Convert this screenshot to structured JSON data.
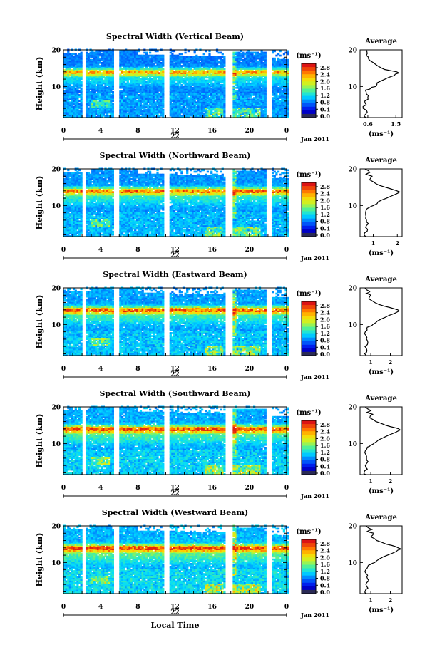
{
  "chart_data": [
    {
      "type": "heatmap",
      "title": "Spectral Width (Vertical Beam)",
      "ylabel": "Height (km)",
      "yticks": [
        "20",
        "10"
      ],
      "xticks": [
        "0",
        "4",
        "8",
        "12",
        "16",
        "20",
        "0"
      ],
      "xlim": [
        0,
        24
      ],
      "ylim": [
        1.5,
        20
      ],
      "date_center": "22",
      "date_right": "Jan 2011",
      "colorbar": {
        "unit": "(ms⁻¹)",
        "ticks": [
          "2.8",
          "2.4",
          "2.0",
          "1.6",
          "1.2",
          "0.8",
          "0.4",
          "0.0"
        ],
        "range": [
          0.0,
          3.0
        ]
      },
      "avg": {
        "title": "Average",
        "xlabel": "(ms⁻¹)",
        "xticks": [
          "0.6",
          "1.5"
        ],
        "xlim": [
          0.35,
          1.7
        ],
        "yticks": [
          "20",
          "10"
        ],
        "profile": [
          [
            1.5,
            0.55
          ],
          [
            2,
            0.48
          ],
          [
            3,
            0.58
          ],
          [
            4,
            0.45
          ],
          [
            5,
            0.55
          ],
          [
            6,
            0.5
          ],
          [
            7,
            0.6
          ],
          [
            8,
            0.55
          ],
          [
            9,
            0.52
          ],
          [
            9.5,
            0.7
          ],
          [
            10,
            0.85
          ],
          [
            11,
            0.9
          ],
          [
            12,
            1.15
          ],
          [
            13,
            1.45
          ],
          [
            13.7,
            1.6
          ],
          [
            14.3,
            1.35
          ],
          [
            15,
            1.05
          ],
          [
            16,
            0.85
          ],
          [
            17,
            0.68
          ],
          [
            18,
            0.62
          ],
          [
            19,
            0.58
          ],
          [
            20,
            0.55
          ]
        ]
      },
      "intensity": 1.0
    },
    {
      "type": "heatmap",
      "title": "Spectral Width (Northward Beam)",
      "ylabel": "Height (km)",
      "yticks": [
        "20",
        "10"
      ],
      "xticks": [
        "0",
        "4",
        "8",
        "12",
        "16",
        "20",
        "0"
      ],
      "xlim": [
        0,
        24
      ],
      "ylim": [
        1.5,
        20
      ],
      "date_center": "22",
      "date_right": "Jan 2011",
      "colorbar": {
        "unit": "(ms⁻¹)",
        "ticks": [
          "2.8",
          "2.4",
          "2.0",
          "1.6",
          "1.2",
          "0.8",
          "0.4",
          "0.0"
        ],
        "range": [
          0.0,
          3.0
        ]
      },
      "avg": {
        "title": "Average",
        "xlabel": "(ms⁻¹)",
        "xticks": [
          "1",
          "2"
        ],
        "xlim": [
          0.45,
          2.2
        ],
        "yticks": [
          "20",
          "10"
        ],
        "profile": [
          [
            1.5,
            0.7
          ],
          [
            2,
            0.62
          ],
          [
            3,
            0.75
          ],
          [
            4,
            0.68
          ],
          [
            5,
            0.8
          ],
          [
            6,
            0.72
          ],
          [
            7,
            0.7
          ],
          [
            8,
            0.68
          ],
          [
            9,
            0.72
          ],
          [
            9.5,
            0.85
          ],
          [
            10,
            1.0
          ],
          [
            11,
            1.2
          ],
          [
            12,
            1.55
          ],
          [
            13,
            1.9
          ],
          [
            13.7,
            2.1
          ],
          [
            14.3,
            1.85
          ],
          [
            15,
            1.5
          ],
          [
            16,
            1.1
          ],
          [
            17,
            0.85
          ],
          [
            18,
            0.95
          ],
          [
            18.5,
            0.7
          ],
          [
            19,
            0.85
          ],
          [
            20,
            0.65
          ]
        ]
      },
      "intensity": 1.1
    },
    {
      "type": "heatmap",
      "title": "Spectral Width (Eastward Beam)",
      "ylabel": "Height (km)",
      "yticks": [
        "20",
        "10"
      ],
      "xticks": [
        "0",
        "4",
        "8",
        "12",
        "16",
        "20",
        "0"
      ],
      "xlim": [
        0,
        24
      ],
      "ylim": [
        1.5,
        20
      ],
      "date_center": "22",
      "date_right": "Jan 2011",
      "colorbar": {
        "unit": "(ms⁻¹)",
        "ticks": [
          "2.8",
          "2.4",
          "2.0",
          "1.6",
          "1.2",
          "0.8",
          "0.4",
          "0.0"
        ],
        "range": [
          0.0,
          3.0
        ]
      },
      "avg": {
        "title": "Average",
        "xlabel": "(ms⁻¹)",
        "xticks": [
          "1",
          "2"
        ],
        "xlim": [
          0.45,
          2.6
        ],
        "yticks": [
          "20",
          "10"
        ],
        "profile": [
          [
            1.5,
            0.75
          ],
          [
            2,
            0.68
          ],
          [
            3,
            0.8
          ],
          [
            4,
            0.7
          ],
          [
            5,
            0.85
          ],
          [
            6,
            0.78
          ],
          [
            7,
            0.75
          ],
          [
            8,
            0.72
          ],
          [
            9,
            0.8
          ],
          [
            9.5,
            0.95
          ],
          [
            10,
            1.1
          ],
          [
            11,
            1.35
          ],
          [
            12,
            1.75
          ],
          [
            13,
            2.2
          ],
          [
            13.7,
            2.45
          ],
          [
            14.3,
            2.2
          ],
          [
            15,
            1.7
          ],
          [
            16,
            1.2
          ],
          [
            17,
            0.9
          ],
          [
            18,
            1.0
          ],
          [
            18.5,
            0.78
          ],
          [
            19,
            0.95
          ],
          [
            20,
            0.7
          ]
        ]
      },
      "intensity": 1.15
    },
    {
      "type": "heatmap",
      "title": "Spectral Width (Southward Beam)",
      "ylabel": "Height (km)",
      "yticks": [
        "20",
        "10"
      ],
      "xticks": [
        "0",
        "4",
        "8",
        "12",
        "16",
        "20",
        "0"
      ],
      "xlim": [
        0,
        24
      ],
      "ylim": [
        1.5,
        20
      ],
      "date_center": "22",
      "date_right": "Jan 2011",
      "colorbar": {
        "unit": "(ms⁻¹)",
        "ticks": [
          "2.8",
          "2.4",
          "2.0",
          "1.6",
          "1.2",
          "0.8",
          "0.4",
          "0.0"
        ],
        "range": [
          0.0,
          3.0
        ]
      },
      "avg": {
        "title": "Average",
        "xlabel": "(ms⁻¹)",
        "xticks": [
          "1",
          "2"
        ],
        "xlim": [
          0.45,
          2.6
        ],
        "yticks": [
          "20",
          "10"
        ],
        "profile": [
          [
            1.5,
            0.75
          ],
          [
            2,
            0.66
          ],
          [
            3,
            0.82
          ],
          [
            4,
            0.72
          ],
          [
            5,
            0.86
          ],
          [
            6,
            0.78
          ],
          [
            7,
            0.74
          ],
          [
            8,
            0.72
          ],
          [
            9,
            0.82
          ],
          [
            9.5,
            0.98
          ],
          [
            10,
            1.15
          ],
          [
            11,
            1.4
          ],
          [
            12,
            1.8
          ],
          [
            13,
            2.25
          ],
          [
            13.7,
            2.5
          ],
          [
            14.3,
            2.25
          ],
          [
            15,
            1.75
          ],
          [
            16,
            1.25
          ],
          [
            17,
            0.95
          ],
          [
            18,
            1.1
          ],
          [
            18.5,
            0.8
          ],
          [
            19,
            1.0
          ],
          [
            20,
            0.72
          ]
        ]
      },
      "intensity": 1.2
    },
    {
      "type": "heatmap",
      "title": "Spectral Width (Westward Beam)",
      "ylabel": "Height (km)",
      "yticks": [
        "20",
        "10"
      ],
      "xticks": [
        "0",
        "4",
        "8",
        "12",
        "16",
        "20",
        "0"
      ],
      "xlim": [
        0,
        24
      ],
      "ylim": [
        1.5,
        20
      ],
      "date_center": "22",
      "date_right": "Jan 2011",
      "xlabel": "Local Time",
      "colorbar": {
        "unit": "(ms⁻¹)",
        "ticks": [
          "2.8",
          "2.4",
          "2.0",
          "1.6",
          "1.2",
          "0.8",
          "0.4",
          "0.0"
        ],
        "range": [
          0.0,
          3.0
        ]
      },
      "avg": {
        "title": "Average",
        "xlabel": "(ms⁻¹)",
        "xticks": [
          "1",
          "2"
        ],
        "xlim": [
          0.45,
          2.6
        ],
        "yticks": [
          "20",
          "10"
        ],
        "profile": [
          [
            1.5,
            0.78
          ],
          [
            2,
            0.7
          ],
          [
            3,
            0.85
          ],
          [
            4,
            0.75
          ],
          [
            5,
            0.9
          ],
          [
            6,
            0.8
          ],
          [
            7,
            0.76
          ],
          [
            8,
            0.74
          ],
          [
            9,
            0.85
          ],
          [
            9.5,
            1.0
          ],
          [
            10,
            1.2
          ],
          [
            11,
            1.45
          ],
          [
            12,
            1.85
          ],
          [
            13,
            2.3
          ],
          [
            13.7,
            2.55
          ],
          [
            14.3,
            2.3
          ],
          [
            15,
            1.8
          ],
          [
            16,
            1.3
          ],
          [
            17,
            1.0
          ],
          [
            18,
            1.15
          ],
          [
            18.5,
            0.82
          ],
          [
            19,
            1.05
          ],
          [
            20,
            0.75
          ]
        ]
      },
      "intensity": 1.25
    }
  ]
}
